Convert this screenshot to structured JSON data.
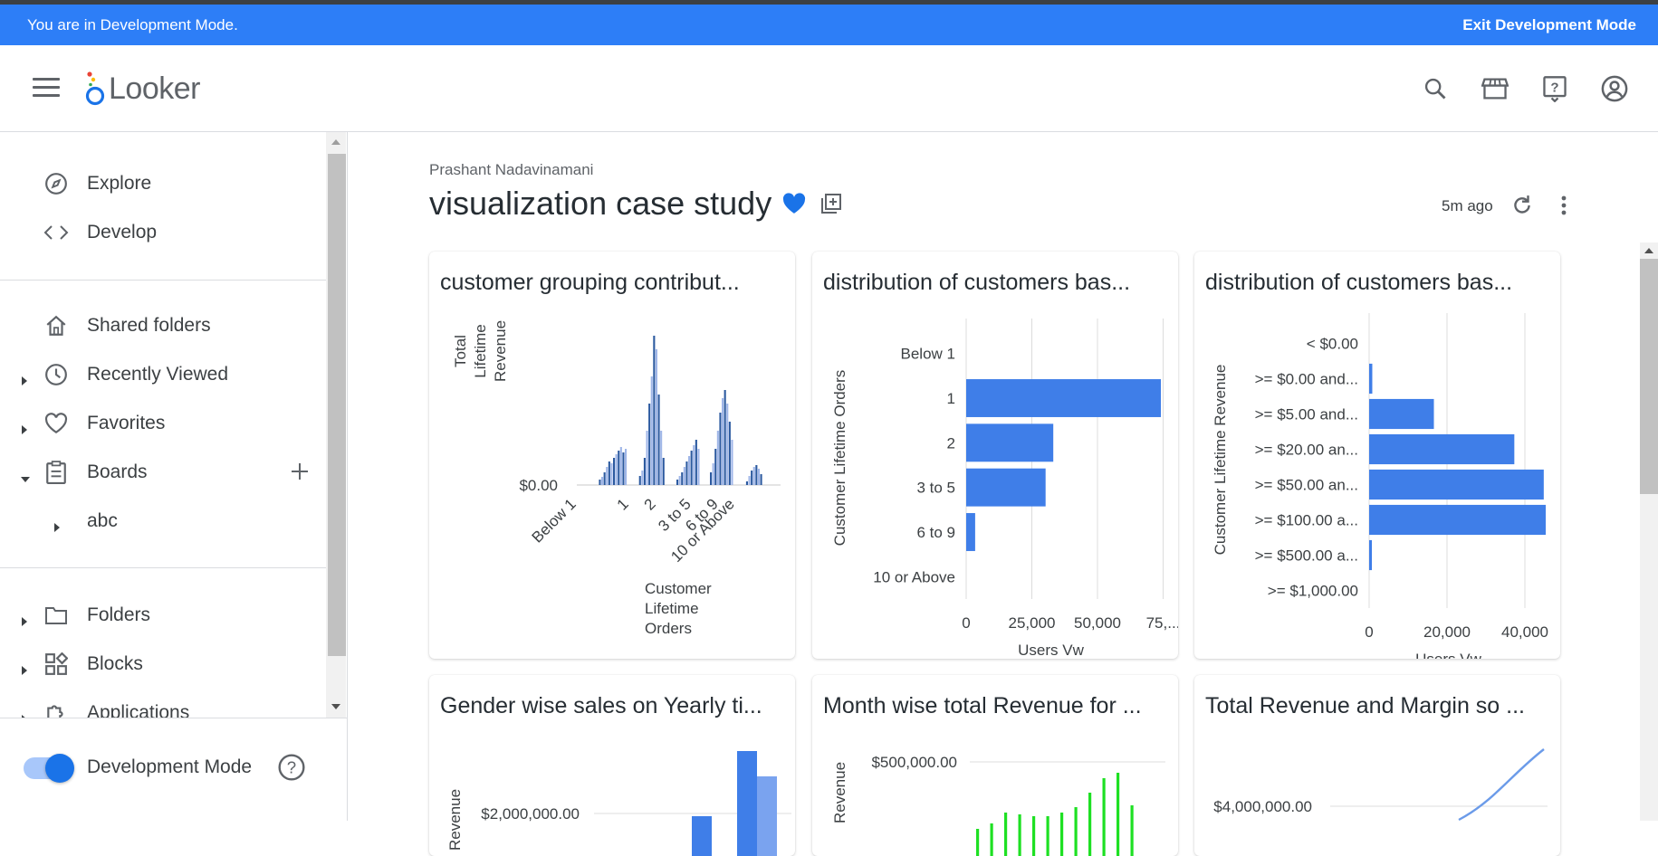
{
  "dev_banner": {
    "message": "You are in Development Mode.",
    "exit_label": "Exit Development Mode"
  },
  "header": {
    "logo_text": "Looker",
    "icons": [
      "search-icon",
      "marketplace-icon",
      "help-icon",
      "account-icon"
    ]
  },
  "sidebar": {
    "explore": "Explore",
    "develop": "Develop",
    "shared_folders": "Shared folders",
    "recently_viewed": "Recently Viewed",
    "favorites": "Favorites",
    "boards": "Boards",
    "board_child": "abc",
    "folders": "Folders",
    "blocks": "Blocks",
    "applications": "Applications",
    "dev_mode_label": "Development Mode",
    "dev_mode_on": true
  },
  "dashboard": {
    "owner": "Prashant Nadavinamani",
    "title": "visualization case study",
    "updated": "5m ago"
  },
  "tiles": [
    {
      "title": "customer grouping contribut..."
    },
    {
      "title": "distribution of customers bas..."
    },
    {
      "title": "distribution of customers bas..."
    },
    {
      "title": "Gender wise sales on Yearly ti..."
    },
    {
      "title": "Month wise total Revenue for ..."
    },
    {
      "title": "Total Revenue and Margin so ..."
    }
  ],
  "chart_data": [
    {
      "type": "bar",
      "xlabel": "Customer Lifetime Orders",
      "ylabel": "Total Lifetime Revenue",
      "categories": [
        "Below 1",
        "1",
        "2",
        "3 to 5",
        "6 to 9",
        "10 or Above"
      ],
      "y_tick": "$0.00"
    },
    {
      "type": "bar",
      "orientation": "horizontal",
      "categories": [
        "Below 1",
        "1",
        "2",
        "3 to 5",
        "6 to 9",
        "10 or Above"
      ],
      "values": [
        0,
        76000,
        34000,
        31000,
        3500,
        0
      ],
      "x_ticks": [
        "0",
        "25,000",
        "50,000",
        "75,..."
      ],
      "xlim": [
        0,
        76000
      ],
      "xlabel": "Users Vw",
      "ylabel": "Customer Lifetime Orders"
    },
    {
      "type": "bar",
      "orientation": "horizontal",
      "categories": [
        "< $0.00",
        ">= $0.00 and...",
        ">= $5.00 and...",
        ">= $20.00 an...",
        ">= $50.00 an...",
        ">= $100.00 a...",
        ">= $500.00 a...",
        ">= $1,000.00"
      ],
      "values": [
        0,
        800,
        16500,
        37000,
        44500,
        45000,
        700,
        0
      ],
      "x_ticks": [
        "0",
        "20,000",
        "40,000"
      ],
      "xlim": [
        0,
        45000
      ],
      "xlabel": "Users Vw",
      "ylabel": "Customer Lifetime Revenue"
    },
    {
      "type": "bar",
      "ylabel": "Revenue",
      "y_tick": "$2,000,000.00"
    },
    {
      "type": "bar",
      "ylabel": "Revenue",
      "y_tick": "$500,000.00"
    },
    {
      "type": "line",
      "y_tick": "$4,000,000.00"
    }
  ]
}
